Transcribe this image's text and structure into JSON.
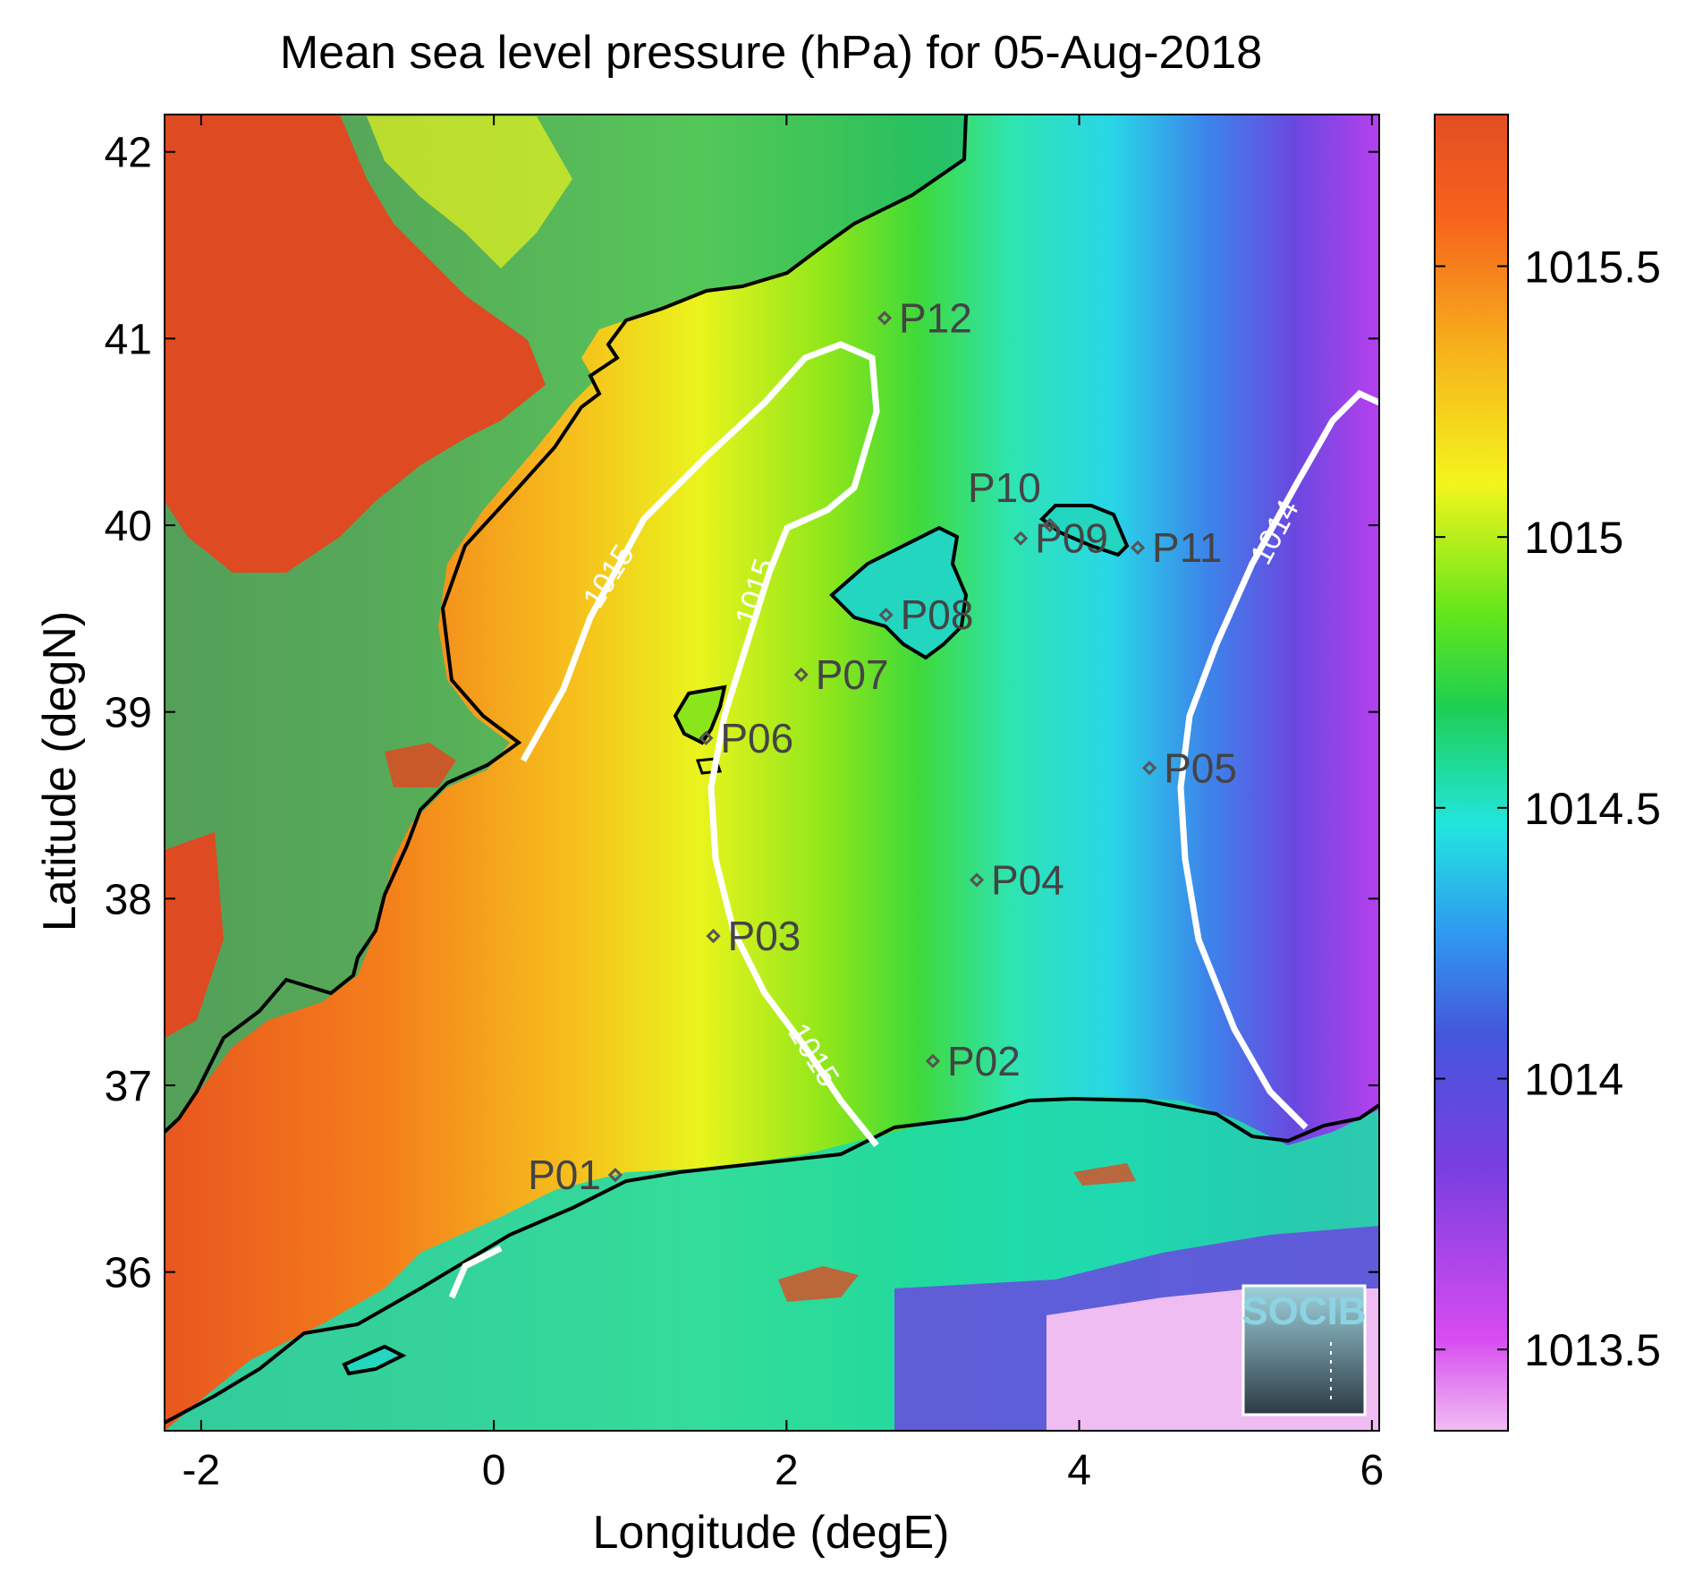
{
  "title": "Mean sea level pressure (hPa) for 05-Aug-2018",
  "xlabel": "Longitude (degE)",
  "ylabel": "Latitude (degN)",
  "x_ticks": [
    -2,
    0,
    2,
    4,
    6
  ],
  "y_ticks": [
    36,
    37,
    38,
    39,
    40,
    41,
    42
  ],
  "xlim": [
    -2.25,
    6.05
  ],
  "ylim": [
    35.15,
    42.2
  ],
  "colorbar": {
    "ticks": [
      "1013.5",
      "1014",
      "1014.5",
      "1015",
      "1015.5"
    ],
    "range": [
      1013.35,
      1015.78
    ],
    "colors": [
      "#efbdf2",
      "#d74cf0",
      "#7a3ee0",
      "#4556dc",
      "#2f9bf0",
      "#22e5e0",
      "#1ecf52",
      "#62e61b",
      "#f3f51c",
      "#f7b21c",
      "#f6641b",
      "#e34d24"
    ]
  },
  "contour_labels": [
    "1015",
    "1015",
    "1015",
    "1014"
  ],
  "stations": [
    {
      "name": "P01",
      "lon": 0.83,
      "lat": 36.52
    },
    {
      "name": "P02",
      "lon": 3.0,
      "lat": 37.13
    },
    {
      "name": "P03",
      "lon": 1.5,
      "lat": 37.8
    },
    {
      "name": "P04",
      "lon": 3.3,
      "lat": 38.1
    },
    {
      "name": "P05",
      "lon": 4.48,
      "lat": 38.7
    },
    {
      "name": "P06",
      "lon": 1.45,
      "lat": 38.86
    },
    {
      "name": "P07",
      "lon": 2.1,
      "lat": 39.2
    },
    {
      "name": "P08",
      "lon": 2.68,
      "lat": 39.52
    },
    {
      "name": "P09",
      "lon": 3.6,
      "lat": 39.93
    },
    {
      "name": "P10",
      "lon": 3.8,
      "lat": 40.0
    },
    {
      "name": "P11",
      "lon": 4.4,
      "lat": 39.88
    },
    {
      "name": "P12",
      "lon": 2.67,
      "lat": 41.11
    }
  ],
  "logo": {
    "text": "SOCIB"
  },
  "chart_data": {
    "type": "heatmap",
    "title": "Mean sea level pressure (hPa) for 05-Aug-2018",
    "xlabel": "Longitude (degE)",
    "ylabel": "Latitude (degN)",
    "xlim": [
      -2.25,
      6.05
    ],
    "ylim": [
      35.15,
      42.2
    ],
    "units": "hPa",
    "contour_levels": [
      1014,
      1015
    ],
    "value_range": [
      1013.35,
      1015.78
    ],
    "notes_visible": "pressure decreases from west (about 1015.7) to east (about 1013.6)"
  }
}
